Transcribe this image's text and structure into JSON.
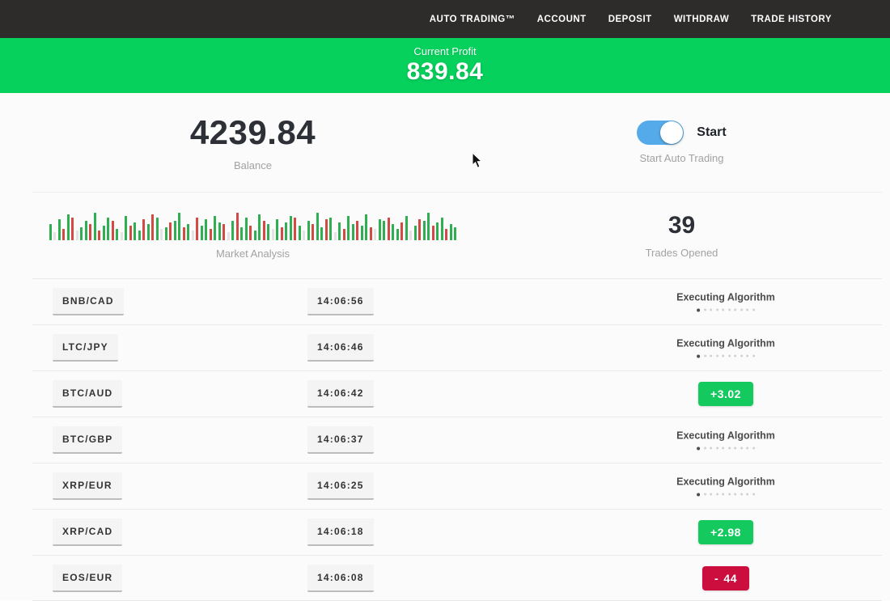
{
  "nav": {
    "items": [
      {
        "label": "AUTO TRADING™"
      },
      {
        "label": "ACCOUNT"
      },
      {
        "label": "DEPOSIT"
      },
      {
        "label": "WITHDRAW"
      },
      {
        "label": "TRADE HISTORY"
      }
    ]
  },
  "profit_banner": {
    "label": "Current Profit",
    "value": "839.84"
  },
  "summary": {
    "balance": {
      "value": "4239.84",
      "label": "Balance"
    },
    "auto_trading": {
      "toggle_label": "Start",
      "label": "Start Auto Trading",
      "toggle_on": true
    },
    "market": {
      "label": "Market Analysis"
    },
    "trades_opened": {
      "value": "39",
      "label": "Trades Opened"
    }
  },
  "executing": {
    "label": "Executing Algorithm",
    "dots_total": 10,
    "dots_active": 1
  },
  "trades": [
    {
      "pair": "BNB/CAD",
      "time": "14:06:56",
      "status": "executing"
    },
    {
      "pair": "LTC/JPY",
      "time": "14:06:46",
      "status": "executing"
    },
    {
      "pair": "BTC/AUD",
      "time": "14:06:42",
      "status": "profit",
      "sign": "+",
      "amount": "3.02"
    },
    {
      "pair": "BTC/GBP",
      "time": "14:06:37",
      "status": "executing"
    },
    {
      "pair": "XRP/EUR",
      "time": "14:06:25",
      "status": "executing"
    },
    {
      "pair": "XRP/CAD",
      "time": "14:06:18",
      "status": "profit",
      "sign": "+",
      "amount": "2.98"
    },
    {
      "pair": "EOS/EUR",
      "time": "14:06:08",
      "status": "loss",
      "sign": "-",
      "amount": "44"
    }
  ],
  "chart_data": {
    "type": "bar",
    "title": "Market Analysis",
    "note": "decorative candlestick strip; encoded as color+height, g=green r=red l=lightgray, number = bar height px (max 36)",
    "bars": [
      "g20",
      "l10",
      "g26",
      "r14",
      "g32",
      "r28",
      "l12",
      "g16",
      "g24",
      "r20",
      "g34",
      "r12",
      "g18",
      "g28",
      "r24",
      "g14",
      "l10",
      "g30",
      "r18",
      "g22",
      "g12",
      "r26",
      "g20",
      "r32",
      "g28",
      "l14",
      "g16",
      "r22",
      "g24",
      "g34",
      "r16",
      "g20",
      "l12",
      "r28",
      "g18",
      "g26",
      "r14",
      "g30",
      "g22",
      "r20",
      "l10",
      "g24",
      "r34",
      "g16",
      "g28",
      "r18",
      "g12",
      "g32",
      "r24",
      "g20",
      "l14",
      "g26",
      "r16",
      "g22",
      "g30",
      "r28",
      "g18",
      "l12",
      "g24",
      "r20",
      "g34",
      "g16",
      "r26",
      "g28",
      "l10",
      "g22",
      "r14",
      "g30",
      "g20",
      "r24",
      "g18",
      "g32",
      "r16",
      "l14",
      "g26",
      "g24",
      "r28",
      "g20",
      "g14",
      "r22",
      "g30",
      "l12",
      "g18",
      "r26",
      "g24",
      "g34",
      "r18",
      "g22",
      "g28",
      "r14",
      "g20",
      "g16"
    ]
  },
  "colors": {
    "nav_bg": "#2e2b2b",
    "banner_green": "#06d15c",
    "profit_green": "#14c95e",
    "loss_red": "#cb0e3e",
    "toggle_blue": "#55abe9",
    "bar_green": "#2fae52",
    "bar_red": "#d24a43",
    "bar_gray": "#e3e3e3"
  }
}
